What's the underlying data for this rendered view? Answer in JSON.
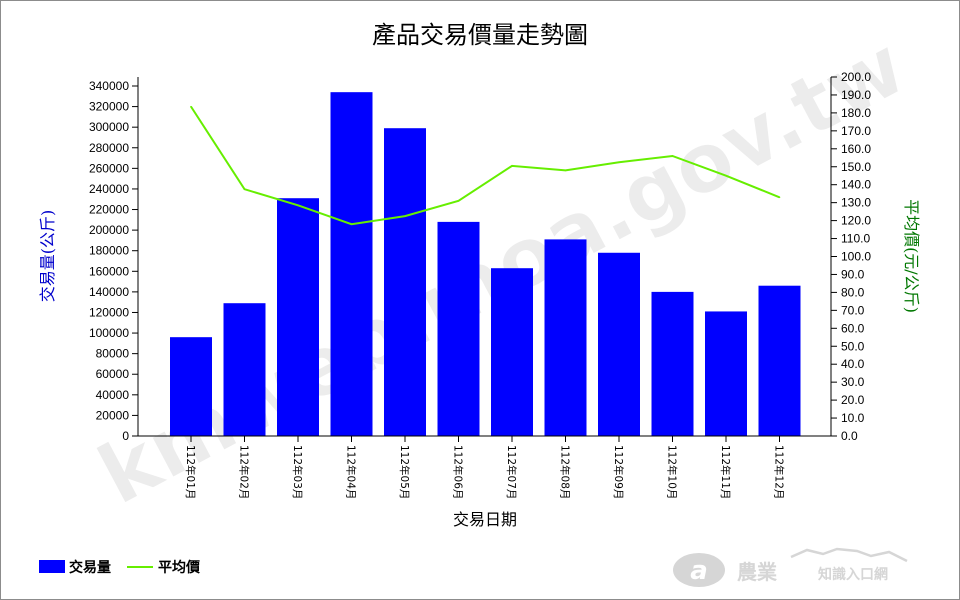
{
  "chart_data": {
    "type": "bar+line",
    "title": "產品交易價量走勢圖",
    "xlabel": "交易日期",
    "ylabel_left": "交易量(公斤)",
    "ylabel_right": "平均價(元/公斤)",
    "categories": [
      "112年01月",
      "112年02月",
      "112年03月",
      "112年04月",
      "112年05月",
      "112年06月",
      "112年07月",
      "112年08月",
      "112年09月",
      "112年10月",
      "112年11月",
      "112年12月"
    ],
    "series": [
      {
        "name": "交易量",
        "type": "bar",
        "axis": "left",
        "color": "#0000ff",
        "values": [
          96000,
          129000,
          231000,
          334000,
          299000,
          208000,
          163000,
          191000,
          178000,
          140000,
          121000,
          146000
        ]
      },
      {
        "name": "平均價",
        "type": "line",
        "axis": "right",
        "color": "#66ee00",
        "values": [
          183.5,
          137.5,
          128.5,
          118.0,
          122.5,
          131.0,
          150.5,
          148.0,
          152.5,
          156.0,
          145.0,
          133.0
        ]
      }
    ],
    "ylim_left": [
      0,
      350000
    ],
    "ylim_right": [
      0,
      200
    ],
    "yticks_left": [
      "0",
      "20000",
      "40000",
      "60000",
      "80000",
      "100000",
      "120000",
      "140000",
      "160000",
      "180000",
      "200000",
      "220000",
      "240000",
      "260000",
      "280000",
      "300000",
      "320000",
      "340000"
    ],
    "yticks_right": [
      "0.0",
      "10.0",
      "20.0",
      "30.0",
      "40.0",
      "50.0",
      "60.0",
      "70.0",
      "80.0",
      "90.0",
      "100.0",
      "110.0",
      "120.0",
      "130.0",
      "140.0",
      "150.0",
      "160.0",
      "170.0",
      "180.0",
      "190.0",
      "200.0"
    ],
    "legend_position": "bottom-left",
    "grid": false
  },
  "watermark": "kmweb.moa.gov.tw",
  "logo": {
    "main": "農業",
    "sub": "知識入口網"
  },
  "colors": {
    "bar": "#0000ff",
    "line": "#66ee00",
    "left_label": "#0000cc",
    "right_label": "#007700"
  }
}
